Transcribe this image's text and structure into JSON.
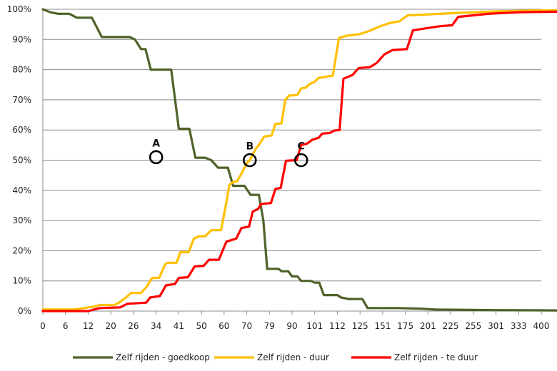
{
  "chart_data": {
    "type": "line",
    "title": "",
    "xlabel": "",
    "ylabel": "",
    "ylim": [
      0,
      1
    ],
    "yticks": [
      "0%",
      "10%",
      "20%",
      "30%",
      "40%",
      "50%",
      "60%",
      "70%",
      "80%",
      "90%",
      "100%"
    ],
    "xticks": [
      "0",
      "6",
      "12",
      "20",
      "26",
      "34",
      "41",
      "50",
      "60",
      "70",
      "79",
      "90",
      "101",
      "112",
      "125",
      "151",
      "175",
      "201",
      "225",
      "255",
      "301",
      "333",
      "400"
    ],
    "grid": "horizontal",
    "legend_position": "bottom",
    "series": [
      {
        "name": "Zelf rijden - goedkoop",
        "color": "#4f6228",
        "points": [
          [
            0,
            1.0
          ],
          [
            1,
            0.99
          ],
          [
            2,
            0.985
          ],
          [
            3.5,
            0.985
          ],
          [
            4.5,
            0.972
          ],
          [
            6.5,
            0.972
          ],
          [
            7.8,
            0.908
          ],
          [
            11.5,
            0.908
          ],
          [
            12.2,
            0.9
          ],
          [
            13,
            0.868
          ],
          [
            13.6,
            0.868
          ],
          [
            14.3,
            0.8
          ],
          [
            17,
            0.8
          ],
          [
            18,
            0.604
          ],
          [
            19.4,
            0.604
          ],
          [
            20.2,
            0.508
          ],
          [
            21.5,
            0.508
          ],
          [
            22.3,
            0.5
          ],
          [
            23.2,
            0.475
          ],
          [
            24.5,
            0.475
          ],
          [
            25.2,
            0.415
          ],
          [
            26.7,
            0.415
          ],
          [
            27.5,
            0.385
          ],
          [
            28.6,
            0.385
          ],
          [
            29.2,
            0.3
          ],
          [
            29.7,
            0.14
          ],
          [
            31.2,
            0.14
          ],
          [
            31.6,
            0.132
          ],
          [
            32.5,
            0.132
          ],
          [
            33.0,
            0.115
          ],
          [
            33.7,
            0.115
          ],
          [
            34.2,
            0.1
          ],
          [
            35.5,
            0.1
          ],
          [
            36.0,
            0.094
          ],
          [
            36.6,
            0.094
          ],
          [
            37.2,
            0.053
          ],
          [
            39,
            0.053
          ],
          [
            39.5,
            0.045
          ],
          [
            40.5,
            0.04
          ],
          [
            42.3,
            0.04
          ],
          [
            43,
            0.01
          ],
          [
            47,
            0.01
          ],
          [
            50,
            0.008
          ],
          [
            52,
            0.005
          ],
          [
            60,
            0.003
          ],
          [
            70,
            0.002
          ],
          [
            80,
            0.001
          ],
          [
            88,
            0.0
          ],
          [
            110,
            0.0
          ]
        ]
      },
      {
        "name": "Zelf rijden - duur",
        "color": "#ffc000",
        "points": [
          [
            0,
            0.005
          ],
          [
            4,
            0.005
          ],
          [
            5,
            0.008
          ],
          [
            6.8,
            0.015
          ],
          [
            7.5,
            0.02
          ],
          [
            9.5,
            0.02
          ],
          [
            10.2,
            0.03
          ],
          [
            11,
            0.045
          ],
          [
            11.7,
            0.06
          ],
          [
            13,
            0.06
          ],
          [
            13.8,
            0.082
          ],
          [
            14.2,
            0.1
          ],
          [
            14.5,
            0.11
          ],
          [
            15.4,
            0.11
          ],
          [
            16.2,
            0.155
          ],
          [
            16.5,
            0.16
          ],
          [
            17.7,
            0.16
          ],
          [
            18.2,
            0.195
          ],
          [
            19.3,
            0.195
          ],
          [
            20.0,
            0.24
          ],
          [
            20.7,
            0.248
          ],
          [
            21.5,
            0.248
          ],
          [
            22.3,
            0.268
          ],
          [
            23.6,
            0.268
          ],
          [
            24.3,
            0.36
          ],
          [
            24.7,
            0.418
          ],
          [
            25.2,
            0.428
          ],
          [
            25.7,
            0.43
          ],
          [
            26.3,
            0.455
          ],
          [
            27.0,
            0.49
          ],
          [
            27.4,
            0.5
          ],
          [
            28.2,
            0.538
          ],
          [
            28.6,
            0.55
          ],
          [
            29.3,
            0.578
          ],
          [
            30.3,
            0.582
          ],
          [
            30.8,
            0.62
          ],
          [
            31.6,
            0.622
          ],
          [
            32.1,
            0.7
          ],
          [
            32.6,
            0.714
          ],
          [
            33.7,
            0.716
          ],
          [
            34.2,
            0.738
          ],
          [
            34.8,
            0.74
          ],
          [
            35.3,
            0.752
          ],
          [
            36,
            0.76
          ],
          [
            36.5,
            0.772
          ],
          [
            37.8,
            0.778
          ],
          [
            38.4,
            0.78
          ],
          [
            39.2,
            0.905
          ],
          [
            40.2,
            0.912
          ],
          [
            42,
            0.918
          ],
          [
            43.2,
            0.928
          ],
          [
            44.5,
            0.942
          ],
          [
            46,
            0.955
          ],
          [
            47.2,
            0.96
          ],
          [
            48.3,
            0.98
          ],
          [
            51,
            0.983
          ],
          [
            55,
            0.988
          ],
          [
            60,
            0.993
          ],
          [
            65,
            0.996
          ],
          [
            75,
            0.998
          ],
          [
            88,
            1.0
          ],
          [
            110,
            1.0
          ]
        ]
      },
      {
        "name": "Zelf rijden - te duur",
        "color": "#ff0000",
        "points": [
          [
            0,
            0.0
          ],
          [
            6,
            0.0
          ],
          [
            7.5,
            0.01
          ],
          [
            10.2,
            0.012
          ],
          [
            11.2,
            0.024
          ],
          [
            13.7,
            0.028
          ],
          [
            14.2,
            0.045
          ],
          [
            15.5,
            0.05
          ],
          [
            16.3,
            0.085
          ],
          [
            17.5,
            0.09
          ],
          [
            18.0,
            0.11
          ],
          [
            19.2,
            0.112
          ],
          [
            20.1,
            0.148
          ],
          [
            21.3,
            0.15
          ],
          [
            22.0,
            0.17
          ],
          [
            23.3,
            0.17
          ],
          [
            24.3,
            0.23
          ],
          [
            25.6,
            0.24
          ],
          [
            26.3,
            0.275
          ],
          [
            27.3,
            0.28
          ],
          [
            27.8,
            0.33
          ],
          [
            28.5,
            0.338
          ],
          [
            28.9,
            0.355
          ],
          [
            30.2,
            0.358
          ],
          [
            30.8,
            0.405
          ],
          [
            31.5,
            0.408
          ],
          [
            32.2,
            0.498
          ],
          [
            33.6,
            0.5
          ],
          [
            34.2,
            0.55
          ],
          [
            35.0,
            0.555
          ],
          [
            35.7,
            0.568
          ],
          [
            36.5,
            0.574
          ],
          [
            37.0,
            0.588
          ],
          [
            38.0,
            0.59
          ],
          [
            38.6,
            0.598
          ],
          [
            39.3,
            0.6
          ],
          [
            39.8,
            0.77
          ],
          [
            41.0,
            0.782
          ],
          [
            41.8,
            0.805
          ],
          [
            43.3,
            0.808
          ],
          [
            44.2,
            0.822
          ],
          [
            45.2,
            0.85
          ],
          [
            46.3,
            0.865
          ],
          [
            48.2,
            0.868
          ],
          [
            49.0,
            0.93
          ],
          [
            51.0,
            0.938
          ],
          [
            52.6,
            0.944
          ],
          [
            54.2,
            0.947
          ],
          [
            55.0,
            0.975
          ],
          [
            57,
            0.98
          ],
          [
            59,
            0.985
          ],
          [
            63,
            0.99
          ],
          [
            68,
            0.992
          ],
          [
            76,
            0.995
          ],
          [
            85,
            0.997
          ],
          [
            95,
            0.998
          ],
          [
            110,
            1.0
          ]
        ]
      }
    ],
    "annotations": [
      {
        "label": "A",
        "x": 15,
        "y": 0.51
      },
      {
        "label": "B",
        "x": 27.4,
        "y": 0.5
      },
      {
        "label": "C",
        "x": 34.2,
        "y": 0.5
      }
    ]
  }
}
